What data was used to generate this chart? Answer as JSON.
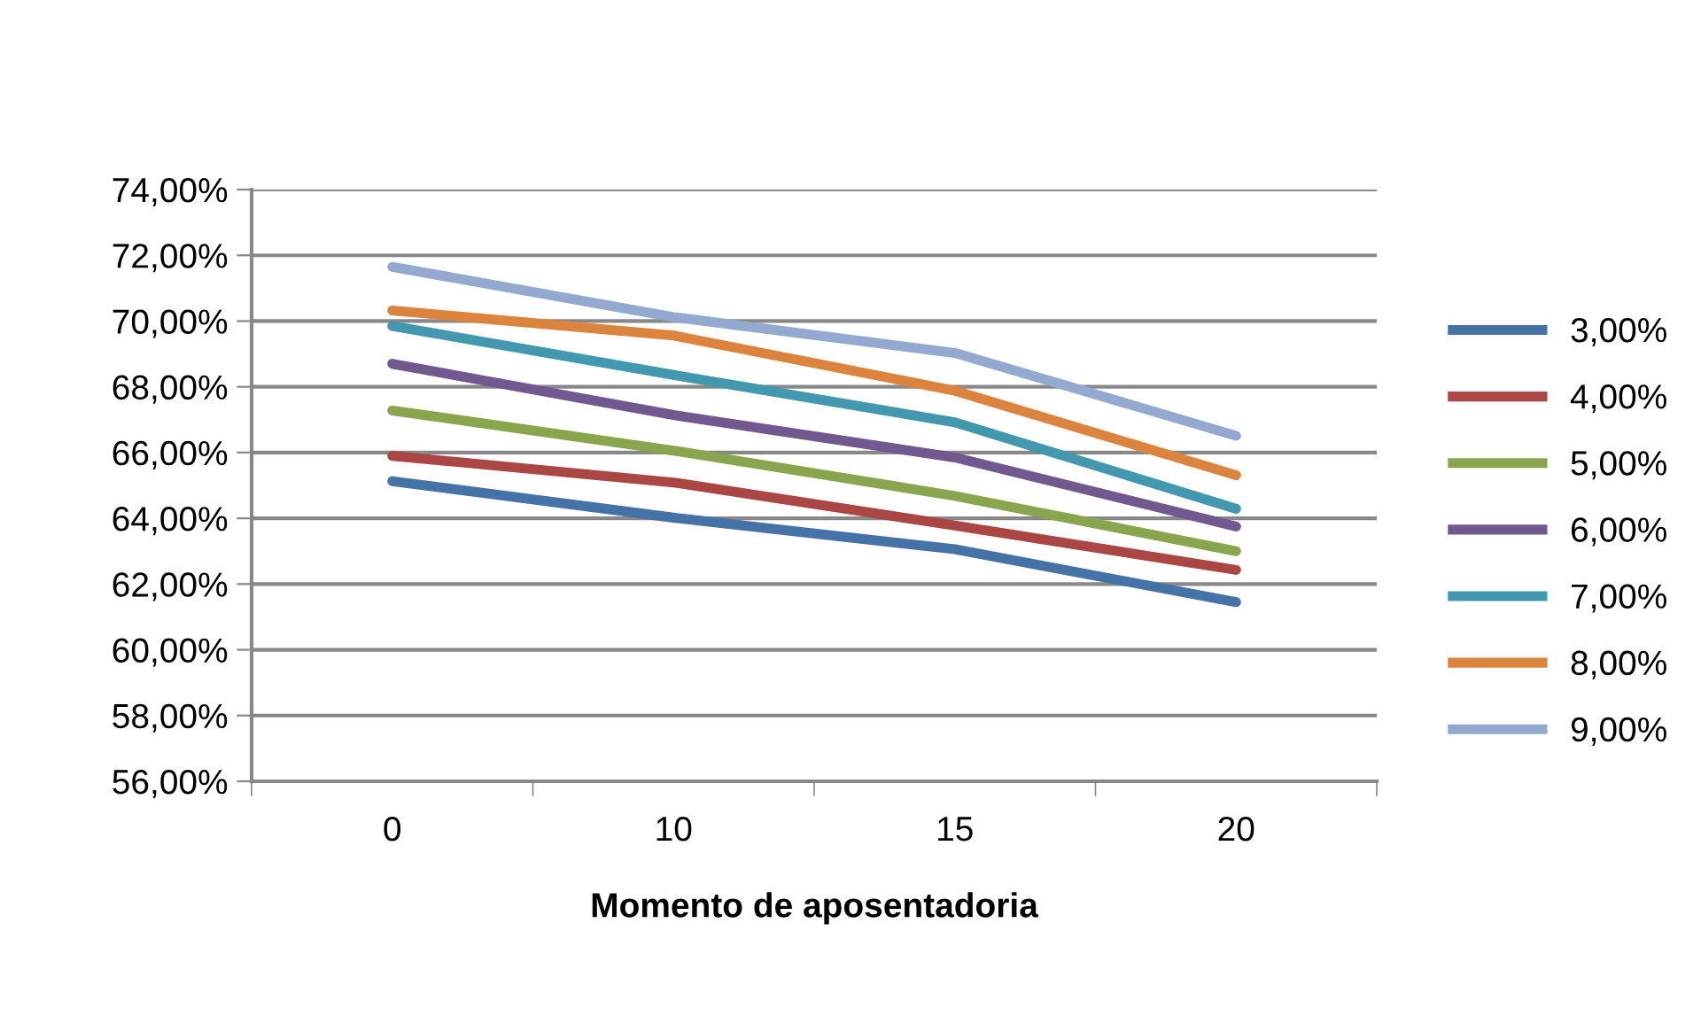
{
  "chart_data": {
    "type": "line",
    "xlabel": "Momento de aposentadoria",
    "categories": [
      "0",
      "10",
      "15",
      "20"
    ],
    "series": [
      {
        "name": "3,00%",
        "color": "#4572a7",
        "values": [
          65.13,
          64.02,
          63.06,
          61.45
        ]
      },
      {
        "name": "4,00%",
        "color": "#aa4643",
        "values": [
          65.9,
          65.09,
          63.78,
          62.43
        ]
      },
      {
        "name": "5,00%",
        "color": "#89a54e",
        "values": [
          67.28,
          66.06,
          64.68,
          63.0
        ]
      },
      {
        "name": "6,00%",
        "color": "#71588f",
        "values": [
          68.7,
          67.14,
          65.85,
          63.75
        ]
      },
      {
        "name": "7,00%",
        "color": "#4198af",
        "values": [
          69.85,
          68.36,
          66.92,
          64.29
        ]
      },
      {
        "name": "8,00%",
        "color": "#db843d",
        "values": [
          70.32,
          69.56,
          67.88,
          65.31
        ]
      },
      {
        "name": "9,00%",
        "color": "#93a9cf",
        "values": [
          71.65,
          70.12,
          69.03,
          66.51
        ]
      }
    ],
    "ylim": [
      56,
      74
    ],
    "yticks": [
      {
        "value": 56,
        "label": "56,00%"
      },
      {
        "value": 58,
        "label": "58,00%"
      },
      {
        "value": 60,
        "label": "60,00%"
      },
      {
        "value": 62,
        "label": "62,00%"
      },
      {
        "value": 64,
        "label": "64,00%"
      },
      {
        "value": 66,
        "label": "66,00%"
      },
      {
        "value": 68,
        "label": "68,00%"
      },
      {
        "value": 70,
        "label": "70,00%"
      },
      {
        "value": 72,
        "label": "72,00%"
      },
      {
        "value": 74,
        "label": "74,00%"
      }
    ],
    "grid": "y",
    "legend": "right",
    "marker": "none",
    "line_style": "solid"
  }
}
